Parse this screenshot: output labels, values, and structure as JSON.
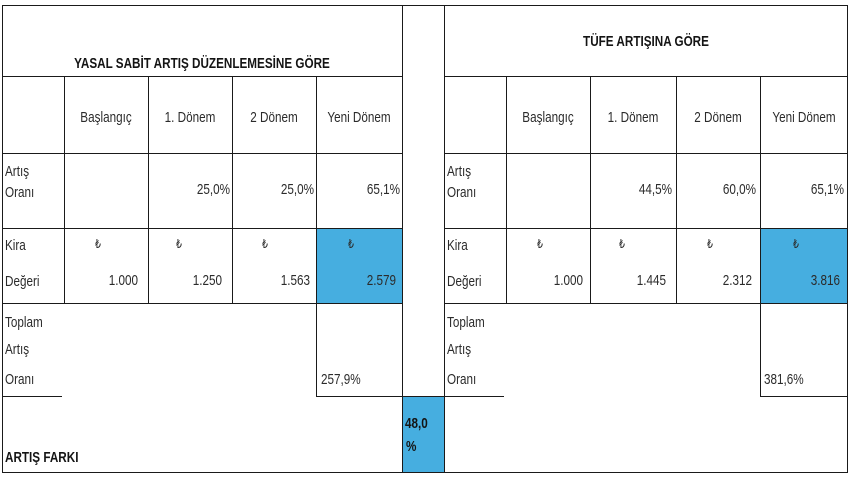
{
  "chart_data": {
    "type": "table",
    "currency_symbol": "₺",
    "tables": [
      {
        "title": "YASAL SABİT ARTIŞ DÜZENLEMESİNE GÖRE",
        "columns": [
          "Başlangıç",
          "1. Dönem",
          "2 Dönem",
          "Yeni Dönem"
        ],
        "increase_rate": {
          "label": [
            "Artış",
            "Oranı"
          ],
          "values": [
            null,
            "25,0%",
            "25,0%",
            "65,1%"
          ]
        },
        "rent_value": {
          "label": [
            "Kira",
            "Değeri"
          ],
          "values": [
            "1.000",
            "1.250",
            "1.563",
            "2.579"
          ]
        },
        "total_increase": {
          "label": [
            "Toplam",
            "Artış",
            "Oranı"
          ],
          "value": "257,9%"
        }
      },
      {
        "title": "TÜFE ARTIŞINA GÖRE",
        "columns": [
          "Başlangıç",
          "1. Dönem",
          "2 Dönem",
          "Yeni Dönem"
        ],
        "increase_rate": {
          "label": [
            "Artış",
            "Oranı"
          ],
          "values": [
            null,
            "44,5%",
            "60,0%",
            "65,1%"
          ]
        },
        "rent_value": {
          "label": [
            "Kira",
            "Değeri"
          ],
          "values": [
            "1.000",
            "1.445",
            "2.312",
            "3.816"
          ]
        },
        "total_increase": {
          "label": [
            "Toplam",
            "Artış",
            "Oranı"
          ],
          "value": "381,6%"
        }
      }
    ],
    "difference": {
      "label": "ARTIŞ FARKI",
      "value": [
        "48,0",
        "%"
      ]
    }
  },
  "colors": {
    "highlight": "#46aee0",
    "grid": "#1a1a1a",
    "text": "#2b2b2b"
  }
}
